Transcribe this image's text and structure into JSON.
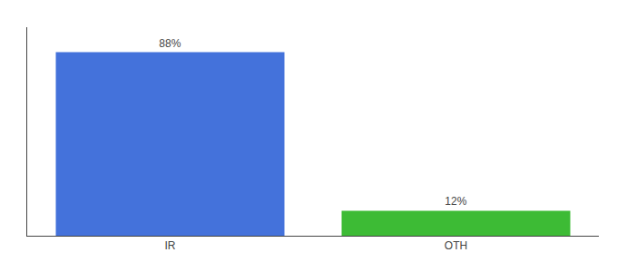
{
  "chart_data": {
    "type": "bar",
    "categories": [
      "IR",
      "OTH"
    ],
    "values": [
      88,
      12
    ],
    "value_labels": [
      "88%",
      "12%"
    ],
    "colors": [
      "#4472db",
      "#3dbb35"
    ],
    "ylim": [
      0,
      100
    ],
    "yticks": [],
    "grid": false,
    "data_labels": true,
    "tick_labels": "x"
  }
}
